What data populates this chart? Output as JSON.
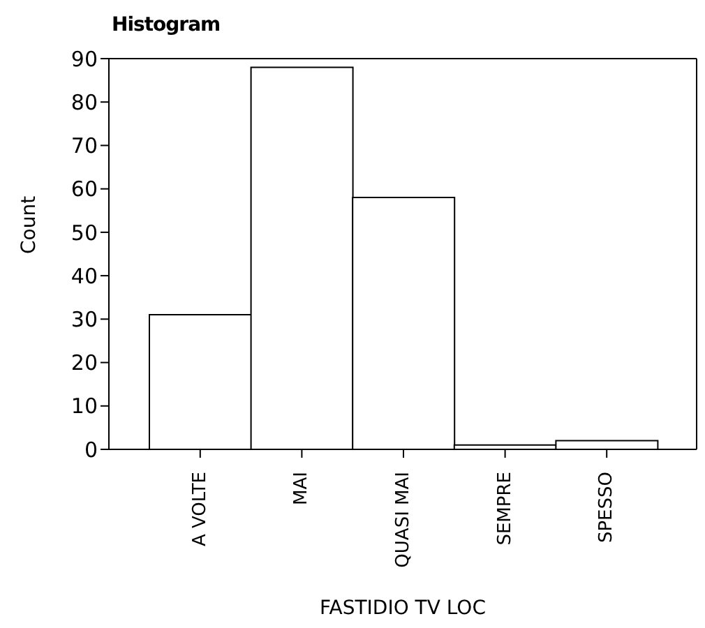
{
  "chart_data": {
    "type": "bar",
    "title": "Histogram",
    "xlabel": "FASTIDIO TV LOC",
    "ylabel": "Count",
    "categories": [
      "A VOLTE",
      "MAI",
      "QUASI MAI",
      "SEMPRE",
      "SPESSO"
    ],
    "values": [
      31,
      88,
      58,
      1,
      2
    ],
    "color": "#ffffff",
    "ylim": [
      0,
      90
    ],
    "yticks": [
      0,
      10,
      20,
      30,
      40,
      50,
      60,
      70,
      80,
      90
    ]
  }
}
